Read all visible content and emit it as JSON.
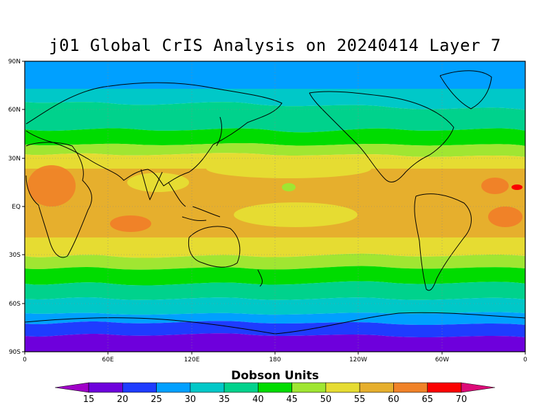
{
  "title": "j01 Global CrIS Analysis on 20240414 Layer 7",
  "colorbar": {
    "title": "Dobson Units",
    "labels": [
      "15",
      "20",
      "25",
      "30",
      "35",
      "40",
      "45",
      "50",
      "55",
      "60",
      "65",
      "70"
    ],
    "colors": [
      "#a000c8",
      "#6e00dc",
      "#1e3cff",
      "#00a0ff",
      "#00c8c8",
      "#00d28c",
      "#00dc00",
      "#a0e632",
      "#e6dc32",
      "#e6af2d",
      "#f08228",
      "#fa0000",
      "#dc0a78"
    ]
  },
  "axes": {
    "lat_ticks": [
      "90N",
      "60N",
      "30N",
      "EQ",
      "30S",
      "60S",
      "90S"
    ],
    "lon_ticks": [
      "0",
      "60E",
      "120E",
      "180",
      "120W",
      "60W",
      "0"
    ]
  },
  "chart_data": {
    "type": "heatmap",
    "title": "j01 Global CrIS Analysis on 20240414 Layer 7",
    "units": "Dobson Units",
    "x_range": [
      0,
      360
    ],
    "y_range": [
      -90,
      90
    ],
    "levels": [
      15,
      20,
      25,
      30,
      35,
      40,
      45,
      50,
      55,
      60,
      65,
      70
    ],
    "zonal_bands_from_north": [
      {
        "lat": [
          75,
          90
        ],
        "value": 32
      },
      {
        "lat": [
          62,
          75
        ],
        "value": 37
      },
      {
        "lat": [
          48,
          62
        ],
        "value": 42
      },
      {
        "lat": [
          38,
          48
        ],
        "value": 47
      },
      {
        "lat": [
          30,
          38
        ],
        "value": 53
      },
      {
        "lat": [
          -15,
          30
        ],
        "value": 57
      },
      {
        "lat": [
          -25,
          -15
        ],
        "value": 53
      },
      {
        "lat": [
          -35,
          -25
        ],
        "value": 48
      },
      {
        "lat": [
          -45,
          -35
        ],
        "value": 43
      },
      {
        "lat": [
          -55,
          -45
        ],
        "value": 37
      },
      {
        "lat": [
          -64,
          -55
        ],
        "value": 32
      },
      {
        "lat": [
          -72,
          -64
        ],
        "value": 27
      },
      {
        "lat": [
          -78,
          -72
        ],
        "value": 22
      },
      {
        "lat": [
          -90,
          -78
        ],
        "value": 17
      }
    ],
    "grid": true
  }
}
